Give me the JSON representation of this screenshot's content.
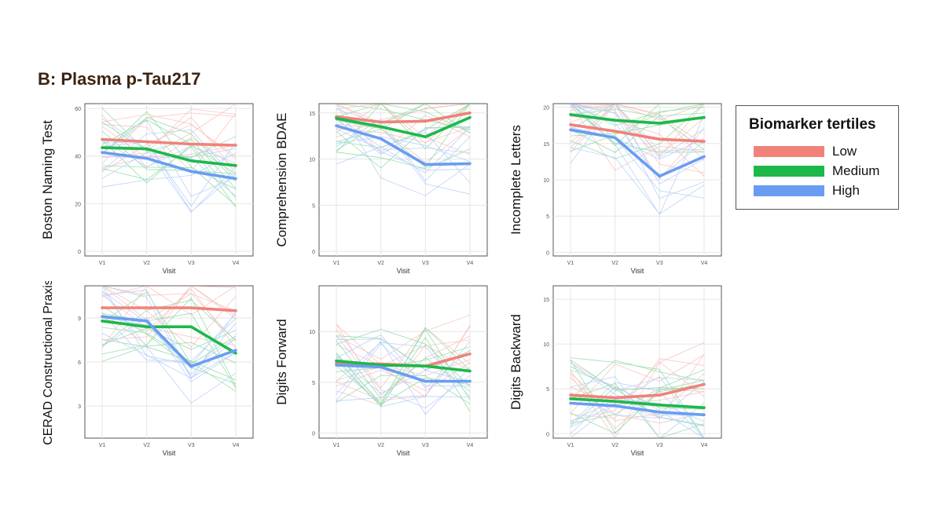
{
  "figure_title": "B: Plasma p-Tau217",
  "colors": {
    "low": "#f0827a",
    "medium": "#1db84a",
    "high": "#6a9df2",
    "grid": "#e6e6e6",
    "frame": "#555555"
  },
  "legend": {
    "title": "Biomarker tertiles",
    "items": [
      {
        "label": "Low",
        "color": "#f0827a"
      },
      {
        "label": "Medium",
        "color": "#1db84a"
      },
      {
        "label": "High",
        "color": "#6a9df2"
      }
    ]
  },
  "chart_data": [
    {
      "type": "line",
      "ylabel": "Boston Naming Test",
      "xlabel": "Visit",
      "categories": [
        "V1",
        "V2",
        "V3",
        "V4"
      ],
      "ylim": [
        -2,
        62
      ],
      "yticks": [
        0,
        20,
        40,
        60
      ],
      "series": [
        {
          "name": "Low",
          "values": [
            47,
            46,
            45,
            44.5
          ]
        },
        {
          "name": "Medium",
          "values": [
            43.5,
            43,
            38,
            36
          ]
        },
        {
          "name": "High",
          "values": [
            41.5,
            39,
            33.5,
            30.5
          ]
        }
      ]
    },
    {
      "type": "line",
      "ylabel": "Comprehension BDAE",
      "xlabel": "Visit",
      "categories": [
        "V1",
        "V2",
        "V3",
        "V4"
      ],
      "ylim": [
        -0.5,
        16
      ],
      "yticks": [
        0,
        5,
        10,
        15
      ],
      "series": [
        {
          "name": "Low",
          "values": [
            14.6,
            14.0,
            14.1,
            15.0
          ]
        },
        {
          "name": "Medium",
          "values": [
            14.4,
            13.5,
            12.4,
            14.5
          ]
        },
        {
          "name": "High",
          "values": [
            13.6,
            12.2,
            9.4,
            9.5
          ]
        }
      ]
    },
    {
      "type": "line",
      "ylabel": "Incomplete Letters",
      "xlabel": "Visit",
      "categories": [
        "V1",
        "V2",
        "V3",
        "V4"
      ],
      "ylim": [
        -0.5,
        20.5
      ],
      "yticks": [
        0,
        5,
        10,
        15,
        20
      ],
      "series": [
        {
          "name": "Low",
          "values": [
            17.6,
            16.7,
            15.6,
            15.3
          ]
        },
        {
          "name": "Medium",
          "values": [
            19.0,
            18.2,
            17.8,
            18.6
          ]
        },
        {
          "name": "High",
          "values": [
            16.9,
            15.8,
            10.5,
            13.2
          ]
        }
      ]
    },
    {
      "type": "line",
      "ylabel": "CERAD Constructional Praxis",
      "xlabel": "Visit",
      "categories": [
        "V1",
        "V2",
        "V3",
        "V4"
      ],
      "ylim": [
        0.8,
        11.2
      ],
      "yticks": [
        3,
        6,
        9
      ],
      "series": [
        {
          "name": "Low",
          "values": [
            9.7,
            9.7,
            9.7,
            9.5
          ]
        },
        {
          "name": "Medium",
          "values": [
            8.8,
            8.4,
            8.4,
            6.6
          ]
        },
        {
          "name": "High",
          "values": [
            9.1,
            8.8,
            5.7,
            6.8
          ]
        }
      ]
    },
    {
      "type": "line",
      "ylabel": "Digits Forward",
      "xlabel": "Visit",
      "categories": [
        "V1",
        "V2",
        "V3",
        "V4"
      ],
      "ylim": [
        -0.5,
        14.5
      ],
      "yticks": [
        0,
        5,
        10
      ],
      "series": [
        {
          "name": "Low",
          "values": [
            6.9,
            6.8,
            6.6,
            7.8
          ]
        },
        {
          "name": "Medium",
          "values": [
            7.1,
            6.7,
            6.6,
            6.1
          ]
        },
        {
          "name": "High",
          "values": [
            6.7,
            6.5,
            5.1,
            5.1
          ]
        }
      ]
    },
    {
      "type": "line",
      "ylabel": "Digits Backward",
      "xlabel": "Visit",
      "categories": [
        "V1",
        "V2",
        "V3",
        "V4"
      ],
      "ylim": [
        -0.5,
        16.5
      ],
      "yticks": [
        0,
        5,
        10,
        15
      ],
      "series": [
        {
          "name": "Low",
          "values": [
            4.3,
            4.0,
            4.3,
            5.5
          ]
        },
        {
          "name": "Medium",
          "values": [
            3.9,
            3.6,
            3.2,
            2.9
          ]
        },
        {
          "name": "High",
          "values": [
            3.4,
            3.1,
            2.4,
            2.1
          ]
        }
      ]
    }
  ]
}
